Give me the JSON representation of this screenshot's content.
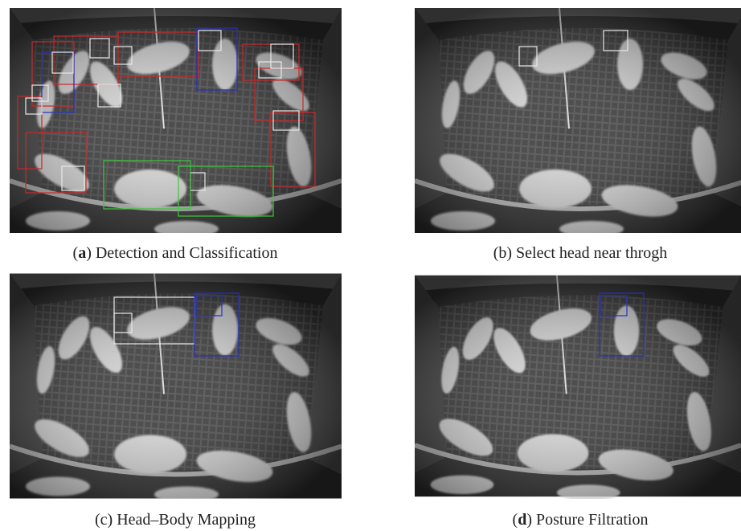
{
  "figure": {
    "panels": [
      {
        "caption": [
          "(",
          "a",
          ") Detection and Classification"
        ]
      },
      {
        "caption": [
          "(b) Select head near throgh"
        ]
      },
      {
        "caption": [
          "(c) Head–Body Mapping"
        ]
      },
      {
        "caption": [
          "(",
          "d",
          ") Posture Filtration"
        ]
      }
    ]
  }
}
